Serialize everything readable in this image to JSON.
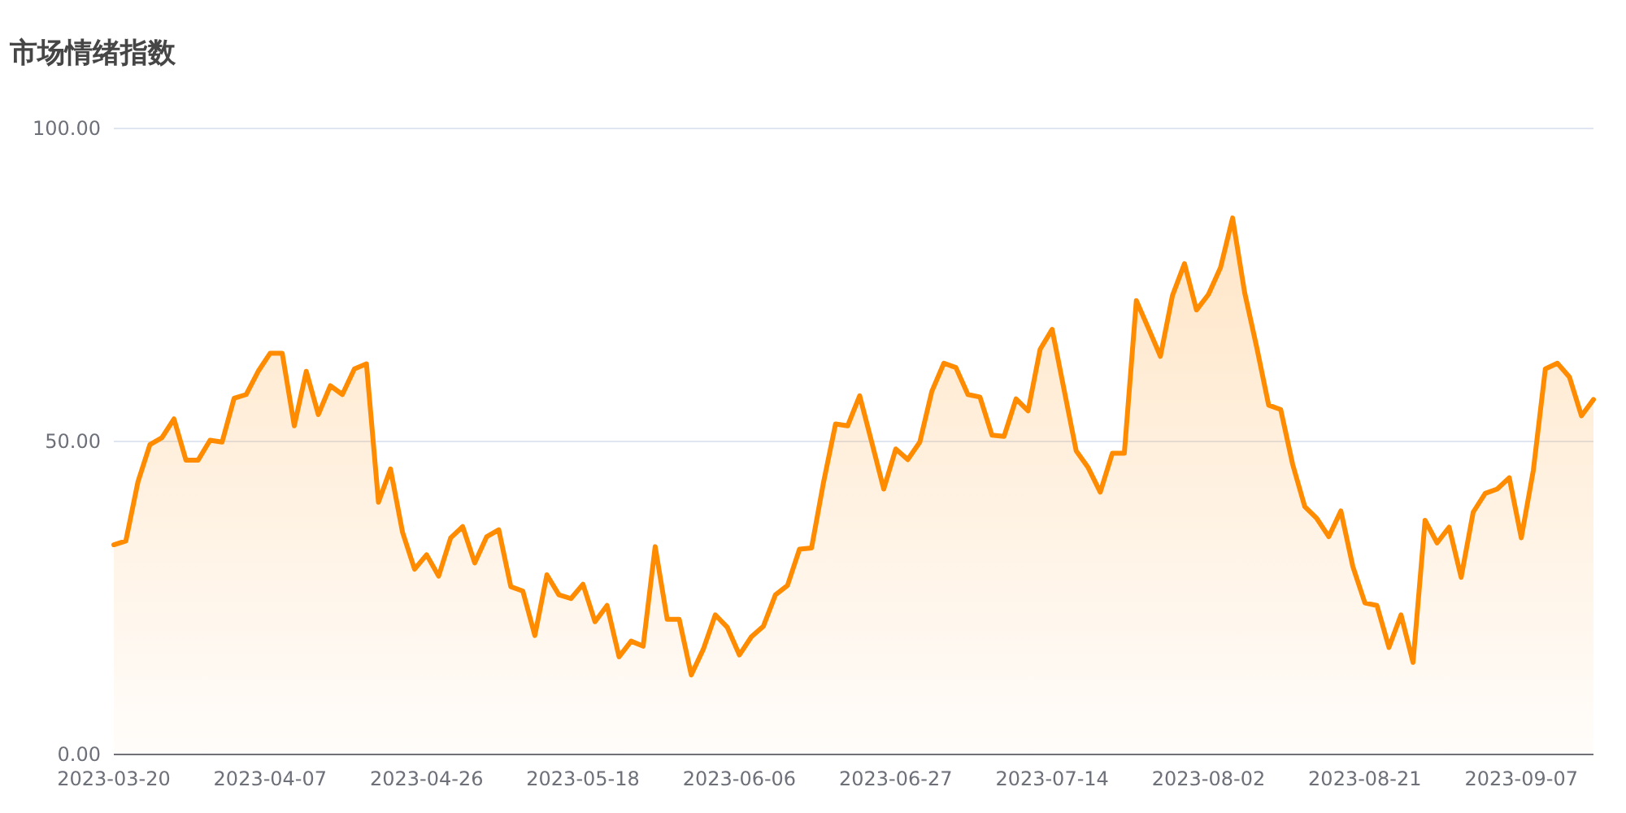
{
  "chart_data": {
    "type": "area",
    "title": "市场情绪指数",
    "categories": [
      "2023-03-20",
      null,
      null,
      null,
      null,
      null,
      null,
      null,
      null,
      null,
      null,
      null,
      null,
      "2023-04-07",
      null,
      null,
      null,
      null,
      null,
      null,
      null,
      null,
      null,
      null,
      null,
      null,
      "2023-04-26",
      null,
      null,
      null,
      null,
      null,
      null,
      null,
      null,
      null,
      null,
      null,
      null,
      "2023-05-18",
      null,
      null,
      null,
      null,
      null,
      null,
      null,
      null,
      null,
      null,
      null,
      null,
      "2023-06-06",
      null,
      null,
      null,
      null,
      null,
      null,
      null,
      null,
      null,
      null,
      null,
      null,
      "2023-06-27",
      null,
      null,
      null,
      null,
      null,
      null,
      null,
      null,
      null,
      null,
      null,
      null,
      "2023-07-14",
      null,
      null,
      null,
      null,
      null,
      null,
      null,
      null,
      null,
      null,
      null,
      null,
      "2023-08-02",
      null,
      null,
      null,
      null,
      null,
      null,
      null,
      null,
      null,
      null,
      null,
      null,
      "2023-08-21",
      null,
      null,
      null,
      null,
      null,
      null,
      null,
      null,
      null,
      null,
      null,
      null,
      "2023-09-07",
      null,
      null,
      null,
      null,
      null,
      null
    ],
    "series": [
      {
        "color": "#ff8c00",
        "values": [
          33.5,
          34.1,
          43.5,
          49.5,
          50.6,
          53.6,
          47.0,
          47.0,
          50.2,
          49.9,
          56.9,
          57.5,
          61.2,
          64.1,
          64.1,
          52.5,
          61.2,
          54.3,
          58.9,
          57.5,
          61.6,
          62.4,
          40.3,
          45.6,
          35.5,
          29.6,
          31.9,
          28.5,
          34.6,
          36.4,
          30.6,
          34.8,
          35.9,
          26.8,
          26.1,
          19.0,
          28.7,
          25.5,
          24.9,
          27.2,
          21.2,
          23.8,
          15.6,
          18.1,
          17.3,
          33.2,
          21.6,
          21.6,
          12.7,
          16.8,
          22.3,
          20.3,
          15.9,
          18.8,
          20.5,
          25.5,
          27.0,
          32.8,
          33.0,
          43.5,
          52.8,
          52.5,
          57.3,
          49.9,
          42.4,
          48.8,
          47.1,
          49.9,
          58.0,
          62.5,
          61.8,
          57.5,
          57.1,
          51.0,
          50.8,
          56.8,
          54.9,
          64.7,
          67.9,
          58.2,
          48.5,
          45.8,
          41.9,
          48.1,
          48.1,
          72.5,
          68.1,
          63.6,
          73.3,
          78.4,
          71.0,
          73.5,
          77.8,
          85.7,
          73.8,
          65.1,
          55.8,
          55.1,
          46.3,
          39.6,
          37.7,
          34.8,
          38.9,
          30.0,
          24.2,
          23.8,
          17.1,
          22.3,
          14.7,
          37.4,
          33.8,
          36.3,
          28.3,
          38.7,
          41.7,
          42.4,
          44.2,
          34.6,
          45.4,
          61.6,
          62.5,
          60.3,
          54.1,
          56.7
        ]
      }
    ],
    "ylim": [
      0,
      100
    ],
    "yticks": [
      {
        "value": 0,
        "label": "0.00"
      },
      {
        "value": 50,
        "label": "50.00"
      },
      {
        "value": 100,
        "label": "100.00"
      }
    ],
    "grid": "y",
    "marker": "none",
    "line_style": "solid"
  }
}
